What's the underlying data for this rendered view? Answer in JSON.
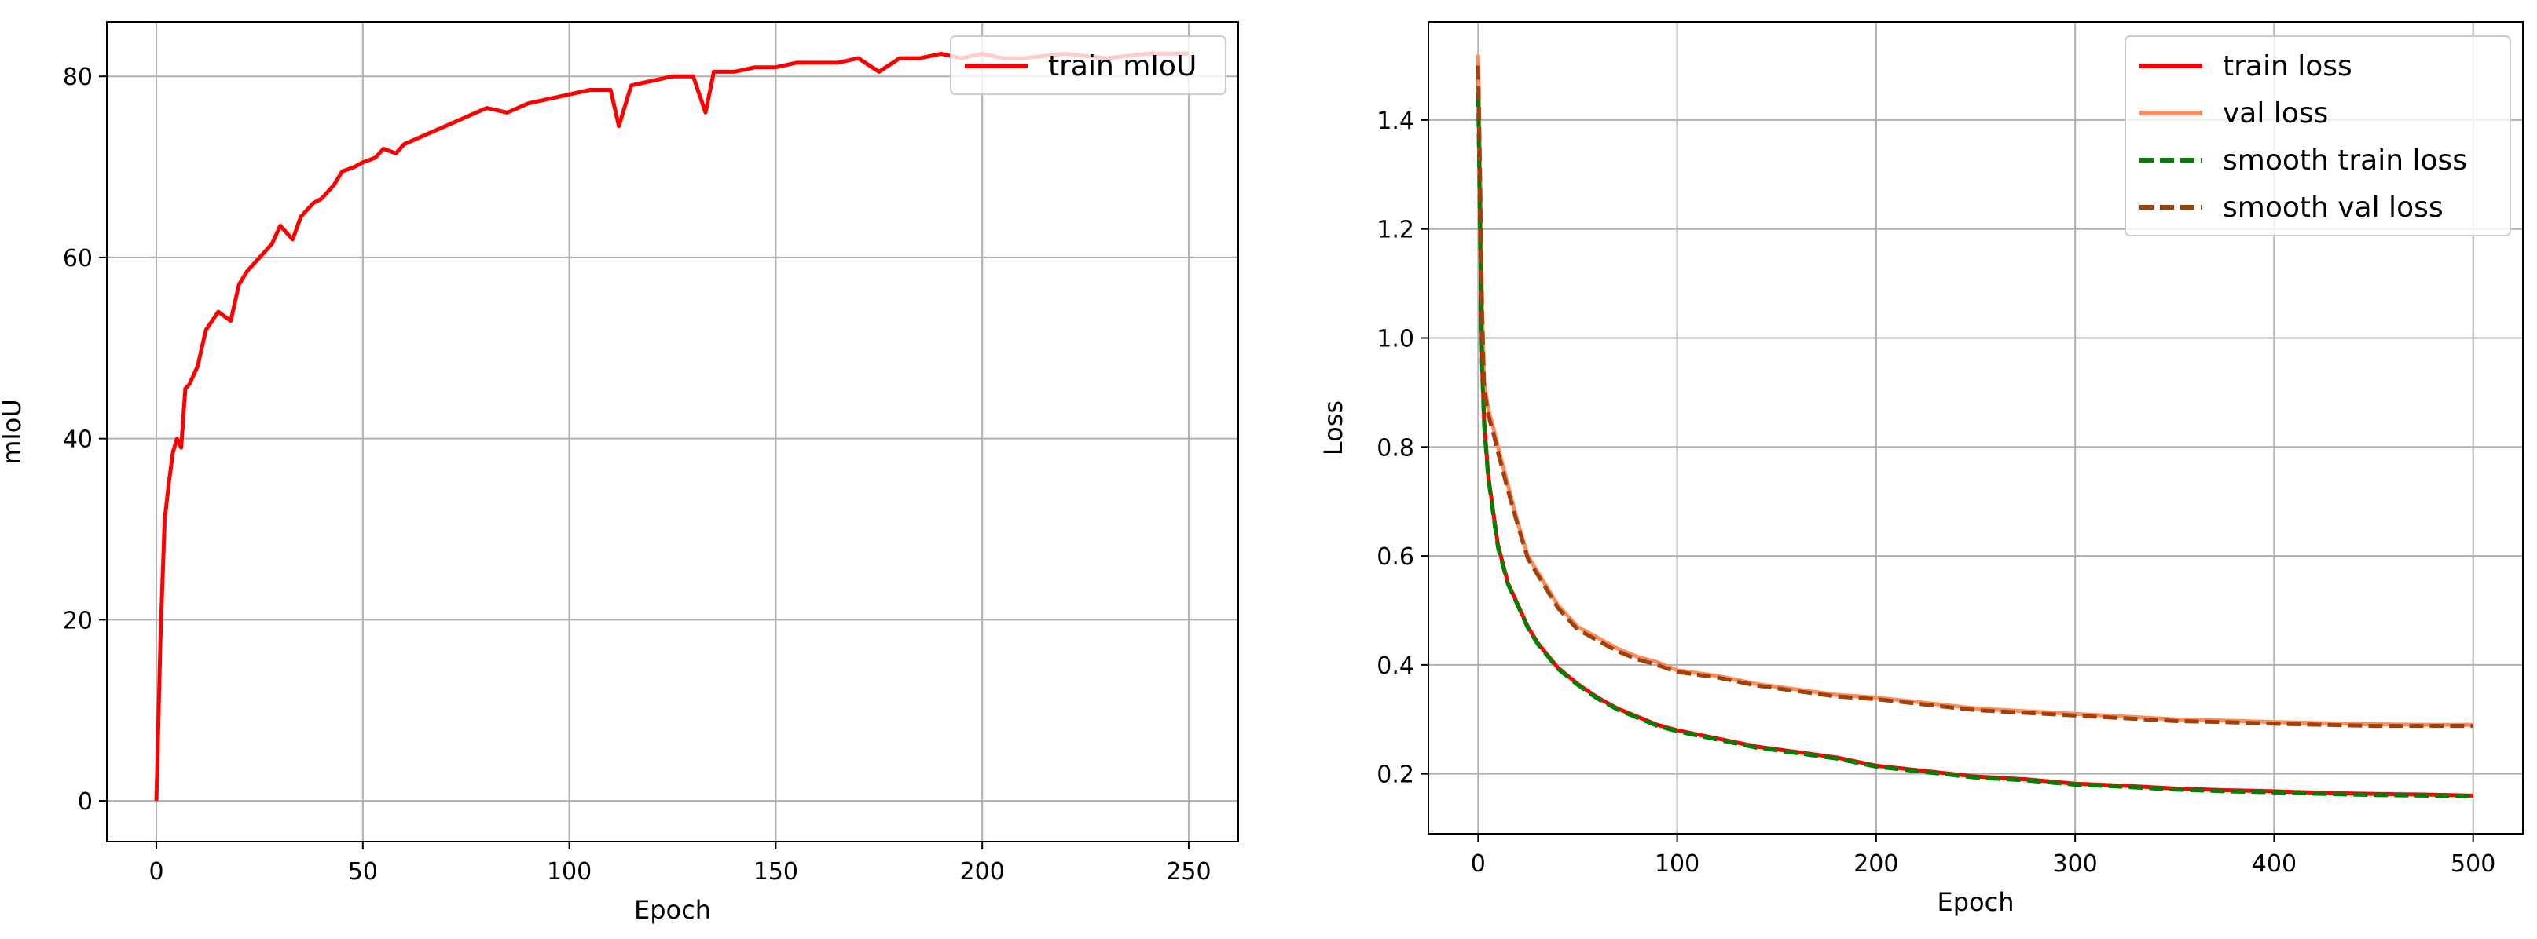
{
  "chart_data": [
    {
      "type": "line",
      "title": "",
      "xlabel": "Epoch",
      "ylabel": "mIoU",
      "xlim": [
        -12,
        262
      ],
      "ylim": [
        -4.5,
        86
      ],
      "xticks": [
        0,
        50,
        100,
        150,
        200,
        250
      ],
      "yticks": [
        0,
        20,
        40,
        60,
        80
      ],
      "grid": true,
      "legend_position": "top-right",
      "series": [
        {
          "name": "train mIoU",
          "color": "#ff0000",
          "style": "solid",
          "x": [
            0,
            1,
            2,
            3,
            4,
            5,
            6,
            7,
            8,
            10,
            12,
            15,
            18,
            20,
            22,
            25,
            28,
            30,
            33,
            35,
            38,
            40,
            43,
            45,
            48,
            50,
            53,
            55,
            58,
            60,
            65,
            70,
            75,
            80,
            85,
            90,
            95,
            100,
            105,
            110,
            112,
            115,
            120,
            125,
            130,
            133,
            135,
            140,
            145,
            150,
            155,
            160,
            165,
            170,
            175,
            180,
            185,
            190,
            195,
            200,
            205,
            210,
            220,
            230,
            240,
            250
          ],
          "y": [
            0,
            18,
            31,
            35,
            38.5,
            40,
            39,
            45.5,
            46,
            48,
            52,
            54,
            53,
            57,
            58.5,
            60,
            61.5,
            63.5,
            62,
            64.5,
            66,
            66.5,
            68,
            69.5,
            70,
            70.5,
            71,
            72,
            71.5,
            72.5,
            73.5,
            74.5,
            75.5,
            76.5,
            76,
            77,
            77.5,
            78,
            78.5,
            78.5,
            74.5,
            79,
            79.5,
            80,
            80,
            76,
            80.5,
            80.5,
            81,
            81,
            81.5,
            81.5,
            81.5,
            82,
            80.5,
            82,
            82,
            82.5,
            82,
            82.5,
            82,
            82,
            82.5,
            82,
            82.5,
            82.5
          ]
        }
      ]
    },
    {
      "type": "line",
      "title": "",
      "xlabel": "Epoch",
      "ylabel": "Loss",
      "xlim": [
        -25,
        525
      ],
      "ylim": [
        0.09,
        1.58
      ],
      "xticks": [
        0,
        100,
        200,
        300,
        400,
        500
      ],
      "yticks": [
        0.2,
        0.4,
        0.6,
        0.8,
        1.0,
        1.2,
        1.4
      ],
      "ytick_labels": [
        "0.2",
        "0.4",
        "0.6",
        "0.8",
        "1.0",
        "1.2",
        "1.4"
      ],
      "grid": true,
      "legend_position": "top-right",
      "series": [
        {
          "name": "train loss",
          "color": "#ff0000",
          "style": "solid",
          "x": [
            0,
            1,
            2,
            3,
            5,
            8,
            10,
            15,
            20,
            25,
            30,
            40,
            50,
            60,
            70,
            80,
            90,
            100,
            120,
            140,
            160,
            180,
            200,
            225,
            250,
            275,
            300,
            325,
            350,
            375,
            400,
            425,
            450,
            475,
            500
          ],
          "y": [
            1.5,
            1.2,
            0.95,
            0.85,
            0.75,
            0.67,
            0.62,
            0.55,
            0.51,
            0.47,
            0.44,
            0.395,
            0.365,
            0.34,
            0.32,
            0.305,
            0.29,
            0.28,
            0.265,
            0.25,
            0.24,
            0.23,
            0.215,
            0.205,
            0.195,
            0.19,
            0.182,
            0.178,
            0.173,
            0.17,
            0.168,
            0.165,
            0.163,
            0.162,
            0.16
          ]
        },
        {
          "name": "val loss",
          "color": "#ff8c5a",
          "style": "solid",
          "x": [
            0,
            1,
            2,
            3,
            5,
            8,
            10,
            15,
            20,
            25,
            30,
            35,
            40,
            50,
            60,
            70,
            80,
            90,
            100,
            120,
            140,
            160,
            180,
            200,
            225,
            250,
            275,
            300,
            325,
            350,
            375,
            400,
            425,
            450,
            475,
            500
          ],
          "y": [
            1.52,
            1.3,
            1.05,
            0.92,
            0.87,
            0.83,
            0.8,
            0.73,
            0.66,
            0.6,
            0.57,
            0.54,
            0.51,
            0.47,
            0.45,
            0.43,
            0.415,
            0.405,
            0.39,
            0.38,
            0.365,
            0.355,
            0.345,
            0.34,
            0.33,
            0.32,
            0.315,
            0.31,
            0.305,
            0.3,
            0.298,
            0.295,
            0.293,
            0.291,
            0.29,
            0.29
          ]
        },
        {
          "name": "smooth train loss",
          "color": "#008000",
          "style": "dashed",
          "x": [
            0,
            1,
            2,
            3,
            5,
            8,
            10,
            15,
            20,
            25,
            30,
            40,
            50,
            60,
            70,
            80,
            90,
            100,
            120,
            140,
            160,
            180,
            200,
            225,
            250,
            275,
            300,
            325,
            350,
            375,
            400,
            425,
            450,
            475,
            500
          ],
          "y": [
            1.45,
            1.18,
            0.94,
            0.84,
            0.745,
            0.665,
            0.615,
            0.548,
            0.508,
            0.468,
            0.438,
            0.393,
            0.363,
            0.338,
            0.318,
            0.303,
            0.288,
            0.278,
            0.263,
            0.248,
            0.238,
            0.228,
            0.213,
            0.203,
            0.193,
            0.188,
            0.18,
            0.176,
            0.171,
            0.168,
            0.166,
            0.163,
            0.161,
            0.16,
            0.159
          ]
        },
        {
          "name": "smooth val loss",
          "color": "#a0400a",
          "style": "dashed",
          "x": [
            0,
            1,
            2,
            3,
            5,
            8,
            10,
            15,
            20,
            25,
            30,
            35,
            40,
            50,
            60,
            70,
            80,
            90,
            100,
            120,
            140,
            160,
            180,
            200,
            225,
            250,
            275,
            300,
            325,
            350,
            375,
            400,
            425,
            450,
            475,
            500
          ],
          "y": [
            1.5,
            1.28,
            1.04,
            0.91,
            0.86,
            0.82,
            0.79,
            0.72,
            0.655,
            0.595,
            0.565,
            0.535,
            0.505,
            0.465,
            0.445,
            0.425,
            0.41,
            0.4,
            0.387,
            0.377,
            0.362,
            0.352,
            0.342,
            0.337,
            0.327,
            0.317,
            0.312,
            0.307,
            0.302,
            0.297,
            0.295,
            0.292,
            0.29,
            0.288,
            0.288,
            0.288
          ]
        }
      ]
    }
  ]
}
